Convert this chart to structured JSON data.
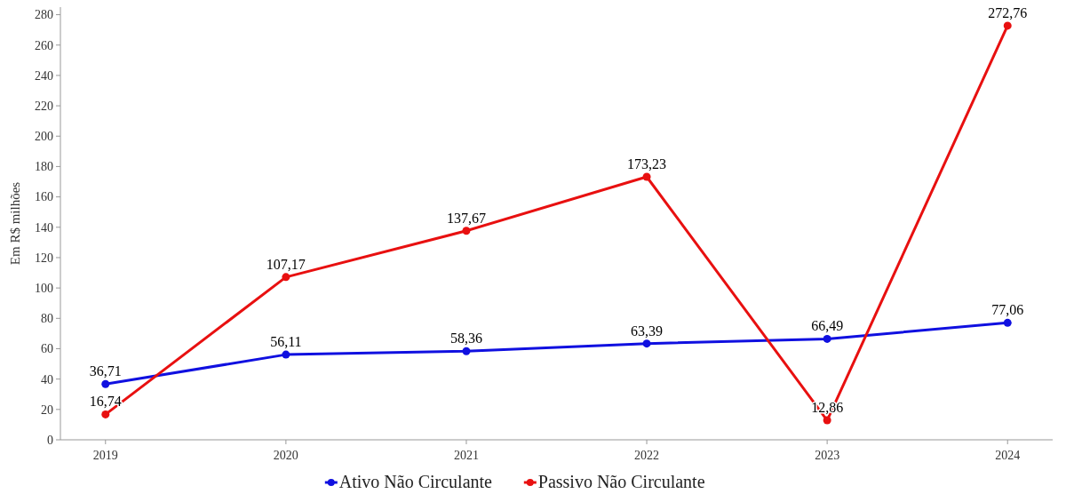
{
  "chart_data": {
    "type": "line",
    "ylabel": "Em R$ milhões",
    "categories": [
      "2019",
      "2020",
      "2021",
      "2022",
      "2023",
      "2024"
    ],
    "series": [
      {
        "name": "Ativo Não Circulante",
        "color": "#1010e0",
        "values": [
          36.71,
          56.11,
          58.36,
          63.39,
          66.49,
          77.06
        ],
        "value_labels": [
          "36,71",
          "56,11",
          "58,36",
          "63,39",
          "66,49",
          "77,06"
        ]
      },
      {
        "name": "Passivo Não Circulante",
        "color": "#e81010",
        "values": [
          16.74,
          107.17,
          137.67,
          173.23,
          12.86,
          272.76
        ],
        "value_labels": [
          "16,74",
          "107,17",
          "137,67",
          "173,23",
          "12,86",
          "272,76"
        ]
      }
    ],
    "ylim": [
      0,
      285
    ],
    "yticks": [
      0,
      20,
      40,
      60,
      80,
      100,
      120,
      140,
      160,
      180,
      200,
      220,
      240,
      260,
      280
    ],
    "grid": false,
    "legend": "bottom",
    "marker": "circle",
    "line_style": "solid"
  }
}
